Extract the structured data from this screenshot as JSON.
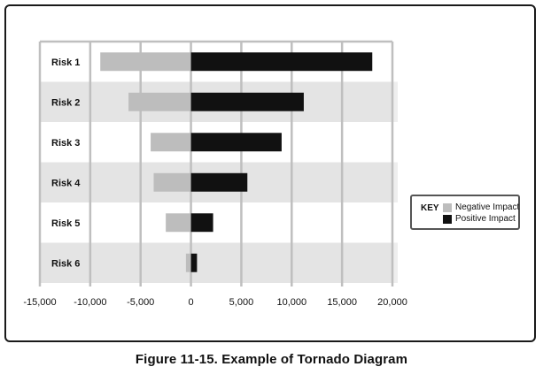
{
  "caption": "Figure 11-15. Example of Tornado Diagram",
  "legend": {
    "title": "KEY",
    "entries": [
      {
        "label": "Negative Impact",
        "color": "#bdbdbd"
      },
      {
        "label": "Positive Impact",
        "color": "#111111"
      }
    ]
  },
  "chart_data": {
    "type": "bar",
    "orientation": "horizontal",
    "title": "",
    "xlabel": "",
    "ylabel": "",
    "categories": [
      "Risk 1",
      "Risk 2",
      "Risk 3",
      "Risk 4",
      "Risk 5",
      "Risk 6"
    ],
    "series": [
      {
        "name": "Negative Impact",
        "color": "#bdbdbd",
        "values": [
          -9000,
          -6200,
          -4000,
          -3700,
          -2500,
          -500
        ]
      },
      {
        "name": "Positive Impact",
        "color": "#111111",
        "values": [
          18000,
          11200,
          9000,
          5600,
          2200,
          600
        ]
      }
    ],
    "xlim": [
      -15000,
      20000
    ],
    "xticks": [
      -15000,
      -10000,
      -5000,
      0,
      5000,
      10000,
      15000,
      20000
    ],
    "xtick_labels": [
      "-15,000",
      "-10,000",
      "-5,000",
      "0",
      "5,000",
      "10,000",
      "15,000",
      "20,000"
    ],
    "grid": true,
    "band_colors": [
      "#ffffff",
      "#e4e4e4"
    ],
    "grid_color": "#bfbfbf"
  }
}
